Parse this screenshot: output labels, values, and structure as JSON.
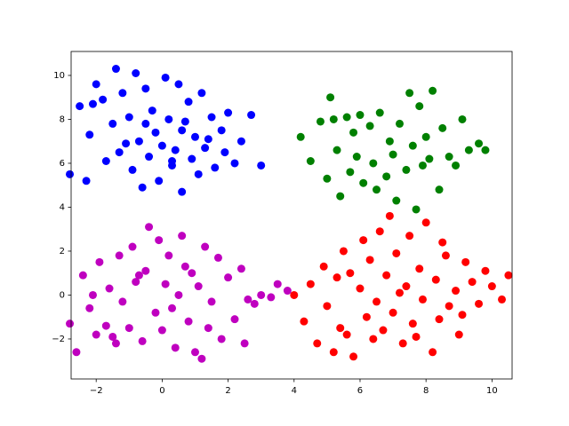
{
  "chart_data": {
    "type": "scatter",
    "xlim": [
      -2.76,
      10.61
    ],
    "ylim": [
      -3.82,
      11.09
    ],
    "xticks": [
      {
        "value": -2,
        "label": "−2"
      },
      0,
      2,
      4,
      6,
      8,
      10
    ],
    "yticks": [
      {
        "value": -2,
        "label": "−2"
      },
      0,
      2,
      4,
      6,
      8,
      10
    ],
    "series": [
      {
        "color": "#0000ff",
        "x": [
          -2.8,
          -2.5,
          -2.3,
          -2.2,
          -2.0,
          -1.8,
          -1.7,
          -1.5,
          -1.4,
          -1.3,
          -1.2,
          -1.0,
          -0.9,
          -0.8,
          -0.7,
          -0.6,
          -0.5,
          -0.4,
          -0.3,
          -0.2,
          -0.1,
          0.0,
          0.1,
          0.2,
          0.3,
          0.4,
          0.5,
          0.6,
          0.7,
          0.8,
          0.9,
          1.0,
          1.1,
          1.2,
          1.3,
          1.5,
          1.6,
          1.8,
          1.9,
          2.0,
          2.2,
          2.4,
          2.7,
          3.0,
          -1.1,
          -0.5,
          0.3,
          1.4,
          -2.1,
          0.6
        ],
        "values": [
          5.5,
          8.6,
          5.2,
          7.3,
          9.6,
          8.9,
          6.1,
          7.8,
          10.3,
          6.5,
          9.2,
          8.1,
          5.7,
          10.1,
          7.0,
          4.9,
          9.4,
          6.3,
          8.4,
          7.4,
          5.2,
          6.8,
          9.9,
          8.0,
          5.9,
          6.6,
          9.6,
          4.7,
          7.9,
          8.8,
          6.2,
          7.2,
          5.5,
          9.2,
          6.7,
          8.1,
          5.8,
          7.5,
          6.5,
          8.3,
          6.0,
          7.0,
          8.2,
          5.9,
          6.9,
          7.8,
          6.1,
          7.1,
          8.7,
          7.5
        ]
      },
      {
        "color": "#008000",
        "x": [
          4.2,
          4.5,
          4.8,
          5.0,
          5.1,
          5.3,
          5.4,
          5.6,
          5.7,
          5.8,
          5.9,
          6.0,
          6.1,
          6.3,
          6.4,
          6.5,
          6.6,
          6.8,
          6.9,
          7.0,
          7.1,
          7.2,
          7.4,
          7.5,
          7.6,
          7.7,
          7.8,
          7.9,
          8.0,
          8.1,
          8.2,
          8.4,
          8.5,
          8.7,
          8.9,
          9.1,
          9.3,
          9.6,
          9.8,
          5.2
        ],
        "values": [
          7.2,
          6.1,
          7.9,
          5.3,
          9.0,
          6.6,
          4.5,
          8.1,
          5.6,
          7.4,
          6.3,
          8.2,
          5.1,
          7.7,
          6.0,
          4.8,
          8.3,
          5.4,
          7.0,
          6.4,
          4.3,
          7.8,
          5.7,
          9.2,
          6.8,
          3.9,
          8.6,
          5.9,
          7.2,
          6.2,
          9.3,
          4.8,
          7.6,
          6.3,
          5.9,
          8.0,
          6.6,
          6.9,
          6.6,
          8.0
        ]
      },
      {
        "color": "#ff0000",
        "x": [
          4.0,
          4.3,
          4.5,
          4.7,
          4.9,
          5.0,
          5.2,
          5.3,
          5.5,
          5.6,
          5.7,
          5.8,
          6.0,
          6.1,
          6.2,
          6.3,
          6.5,
          6.6,
          6.7,
          6.8,
          6.9,
          7.0,
          7.1,
          7.3,
          7.4,
          7.5,
          7.6,
          7.8,
          7.9,
          8.0,
          8.2,
          8.3,
          8.4,
          8.6,
          8.7,
          8.9,
          9.0,
          9.2,
          9.4,
          9.6,
          9.8,
          10.0,
          10.3,
          10.5,
          5.4,
          6.4,
          7.2,
          7.7,
          8.5,
          9.1
        ],
        "values": [
          0.0,
          -1.2,
          0.5,
          -2.2,
          1.3,
          -0.5,
          -2.6,
          0.8,
          2.0,
          -1.8,
          1.0,
          -2.8,
          0.3,
          2.5,
          -1.0,
          1.6,
          -0.3,
          2.9,
          -1.6,
          0.9,
          3.6,
          -0.8,
          1.9,
          -2.2,
          0.4,
          2.7,
          -1.3,
          1.2,
          -0.2,
          3.3,
          -2.6,
          0.7,
          -1.1,
          1.8,
          -0.5,
          0.2,
          -1.8,
          1.5,
          0.6,
          -0.4,
          1.1,
          0.4,
          -0.2,
          0.9,
          -1.5,
          -2.0,
          0.1,
          -1.9,
          2.4,
          -0.9
        ]
      },
      {
        "color": "#bf00bf",
        "x": [
          -2.8,
          -2.6,
          -2.4,
          -2.2,
          -2.0,
          -1.9,
          -1.7,
          -1.6,
          -1.4,
          -1.3,
          -1.2,
          -1.0,
          -0.9,
          -0.8,
          -0.6,
          -0.5,
          -0.4,
          -0.2,
          -0.1,
          0.0,
          0.1,
          0.2,
          0.4,
          0.5,
          0.6,
          0.8,
          0.9,
          1.0,
          1.1,
          1.3,
          1.4,
          1.5,
          1.7,
          1.8,
          2.0,
          2.2,
          2.4,
          2.6,
          2.8,
          3.0,
          3.3,
          3.5,
          3.8,
          -1.5,
          -0.7,
          0.3,
          1.2,
          -2.1,
          0.7,
          2.5
        ],
        "values": [
          -1.3,
          -2.6,
          0.9,
          -0.6,
          -1.8,
          1.5,
          -1.4,
          0.3,
          -2.2,
          1.8,
          -0.3,
          -1.5,
          2.2,
          0.6,
          -2.1,
          1.1,
          3.1,
          -0.8,
          2.5,
          -1.6,
          0.5,
          1.8,
          -2.4,
          0.0,
          2.7,
          -1.2,
          1.0,
          -2.6,
          0.4,
          2.2,
          -1.5,
          -0.3,
          1.7,
          -2.0,
          0.8,
          -1.1,
          1.2,
          -0.2,
          -0.4,
          0.0,
          -0.1,
          0.5,
          0.2,
          -1.9,
          0.9,
          -0.6,
          -2.9,
          0.0,
          1.3,
          -2.2
        ]
      }
    ]
  }
}
